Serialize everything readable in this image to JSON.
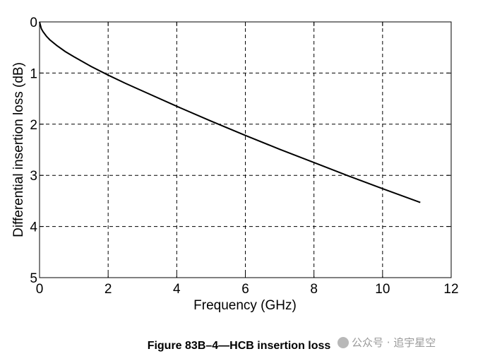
{
  "chart_data": {
    "type": "line",
    "xlabel": "Frequency (GHz)",
    "ylabel": "Differential insertion loss (dB)",
    "xlim": [
      0,
      12
    ],
    "ylim": [
      0,
      5
    ],
    "y_inverted": true,
    "x_ticks": [
      "0",
      "2",
      "4",
      "6",
      "8",
      "10",
      "12"
    ],
    "y_ticks": [
      "0",
      "1",
      "2",
      "3",
      "4",
      "5"
    ],
    "grid": "dashed",
    "series": [
      {
        "x": [
          0,
          0.05,
          0.1,
          0.2,
          0.3,
          0.5,
          0.75,
          1,
          1.5,
          2,
          2.5,
          3,
          4,
          5,
          6,
          7,
          8,
          9,
          10,
          11.1
        ],
        "y": [
          0,
          0.13,
          0.19,
          0.28,
          0.35,
          0.46,
          0.58,
          0.68,
          0.87,
          1.04,
          1.2,
          1.35,
          1.65,
          1.94,
          2.22,
          2.49,
          2.75,
          3.01,
          3.26,
          3.53
        ],
        "color": "#000000"
      }
    ]
  },
  "caption": "Figure 83B–4—HCB insertion loss",
  "watermark": "公众号 · 追宇星空"
}
